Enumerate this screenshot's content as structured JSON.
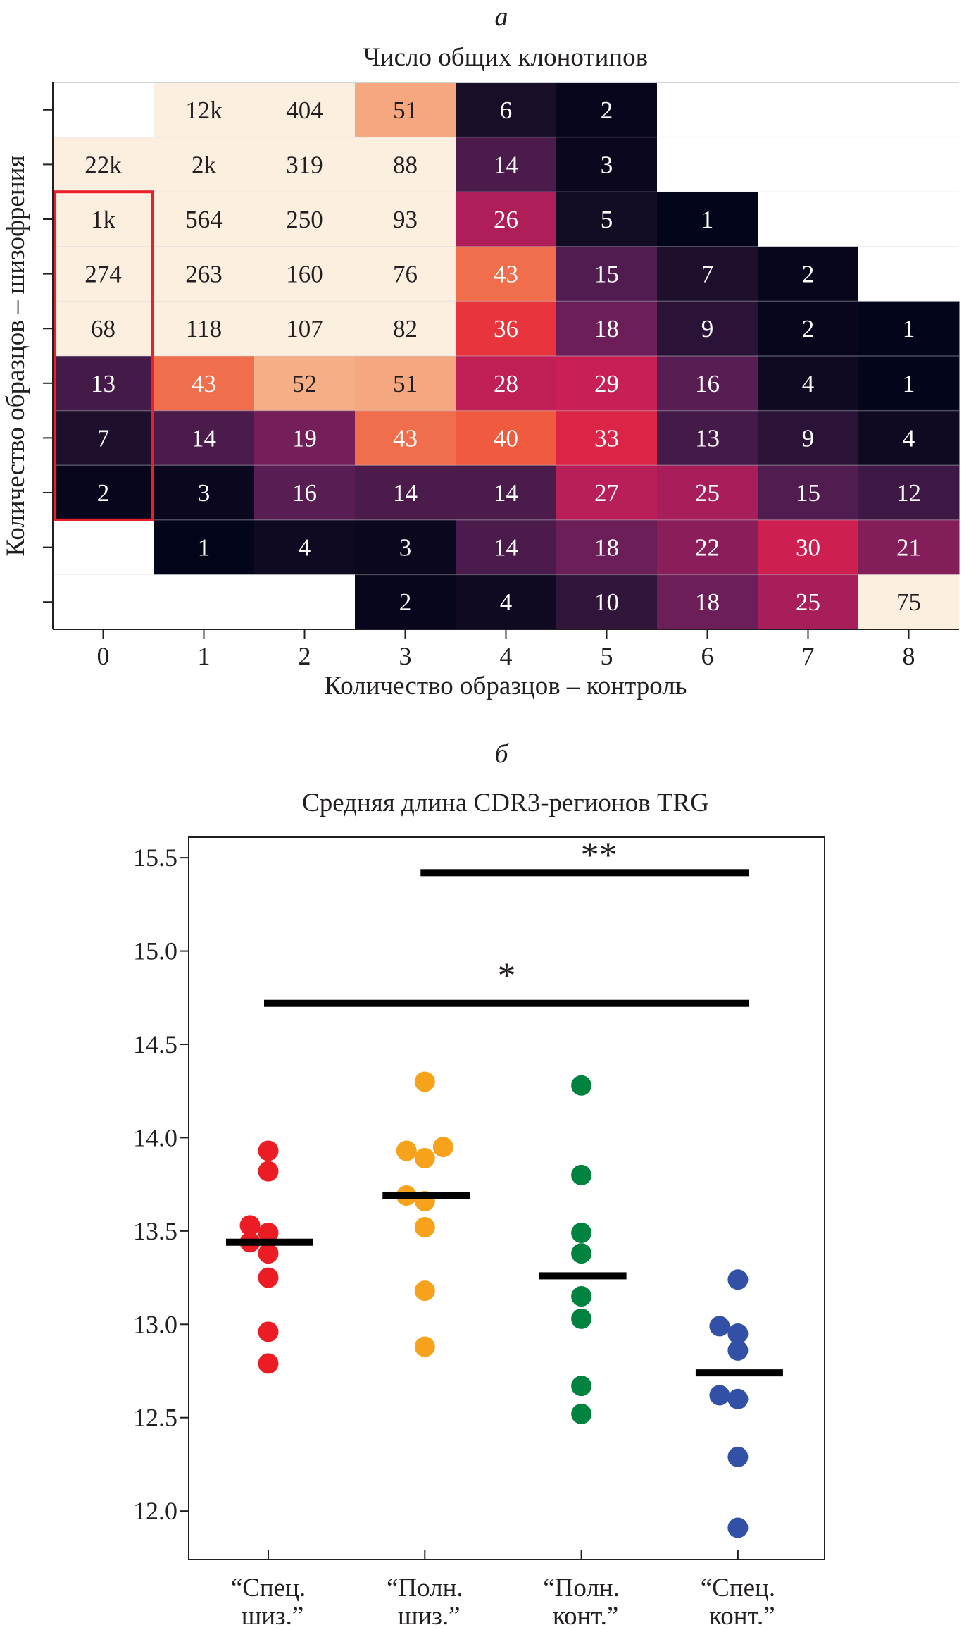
{
  "figure": {
    "panel_a_label": "а",
    "panel_b_label": "б"
  },
  "chart_data": [
    {
      "type": "heatmap",
      "title": "Число общих клонотипов",
      "xlabel": "Количество образцов – контроль",
      "ylabel": "Количество образцов – шизофрения",
      "x_ticks": [
        "0",
        "1",
        "2",
        "3",
        "4",
        "5",
        "6",
        "7",
        "8"
      ],
      "y_ticks_labeled": false,
      "rows_top_to_bottom": [
        [
          null,
          "12k",
          "404",
          "51",
          "6",
          "2",
          null,
          null,
          null
        ],
        [
          "22k",
          "2k",
          "319",
          "88",
          "14",
          "3",
          null,
          null,
          null
        ],
        [
          "1k",
          "564",
          "250",
          "93",
          "26",
          "5",
          "1",
          null,
          null
        ],
        [
          "274",
          "263",
          "160",
          "76",
          "43",
          "15",
          "7",
          "2",
          null
        ],
        [
          "68",
          "118",
          "107",
          "82",
          "36",
          "18",
          "9",
          "2",
          "1"
        ],
        [
          "13",
          "43",
          "52",
          "51",
          "28",
          "29",
          "16",
          "4",
          "1"
        ],
        [
          "7",
          "14",
          "19",
          "43",
          "40",
          "33",
          "13",
          "9",
          "4"
        ],
        [
          "2",
          "3",
          "16",
          "14",
          "14",
          "27",
          "25",
          "15",
          "12"
        ],
        [
          null,
          "1",
          "4",
          "3",
          "14",
          "18",
          "22",
          "30",
          "21"
        ],
        [
          null,
          null,
          null,
          "2",
          "4",
          "10",
          "18",
          "25",
          "75"
        ]
      ],
      "highlight": {
        "description": "red rectangle",
        "column": 0,
        "rows_top_to_bottom": [
          2,
          7
        ],
        "color": "#e8202a"
      },
      "colormap": "rocket",
      "color_note": "dark (low) to cream (high)"
    },
    {
      "type": "scatter",
      "title": "Средняя длина CDR3-регионов TRG",
      "xlabel": "",
      "ylabel": "",
      "ylim": [
        11.74,
        15.61
      ],
      "y_ticks": [
        12.0,
        12.5,
        13.0,
        13.5,
        14.0,
        14.5,
        15.0,
        15.5
      ],
      "y_tick_labels": [
        "12.0",
        "12.5",
        "13.0",
        "13.5",
        "14.0",
        "14.5",
        "15.0",
        "15.5"
      ],
      "categories": [
        {
          "line1": "“Спец.",
          "line2": "шиз.”"
        },
        {
          "line1": "“Полн.",
          "line2": "шиз.”"
        },
        {
          "line1": "“Полн.",
          "line2": "конт.”"
        },
        {
          "line1": "“Спец.",
          "line2": "конт.”"
        }
      ],
      "series": [
        {
          "name": "Спец. шиз.",
          "color": "#ec1c24",
          "values": [
            13.93,
            13.82,
            13.53,
            13.49,
            13.44,
            13.38,
            13.25,
            12.96,
            12.79
          ],
          "jitter": [
            0,
            0,
            -1,
            0,
            -1,
            0,
            0,
            0,
            0
          ],
          "median": 13.44
        },
        {
          "name": "Полн. шиз.",
          "color": "#f7a21b",
          "values": [
            14.3,
            13.93,
            13.95,
            13.89,
            13.69,
            13.66,
            13.52,
            13.18,
            12.88
          ],
          "jitter": [
            0,
            -1,
            1,
            0,
            -1,
            0,
            0,
            0,
            0
          ],
          "median": 13.69
        },
        {
          "name": "Полн. конт.",
          "color": "#00833e",
          "values": [
            14.28,
            13.8,
            13.49,
            13.38,
            13.15,
            13.03,
            12.67,
            12.52
          ],
          "jitter": [
            0,
            0,
            0,
            0,
            0,
            0,
            0,
            0
          ],
          "median": 13.26
        },
        {
          "name": "Спец. конт.",
          "color": "#3250a5",
          "values": [
            13.24,
            12.99,
            12.95,
            12.86,
            12.62,
            12.6,
            12.29,
            11.91
          ],
          "jitter": [
            0,
            -1,
            0,
            0,
            -1,
            0,
            0,
            0
          ],
          "median": 12.74
        }
      ],
      "significance": [
        {
          "from": 1,
          "to": 3,
          "y": 15.42,
          "label": "**"
        },
        {
          "from": 0,
          "to": 3,
          "y": 14.72,
          "label": "*"
        }
      ]
    }
  ]
}
